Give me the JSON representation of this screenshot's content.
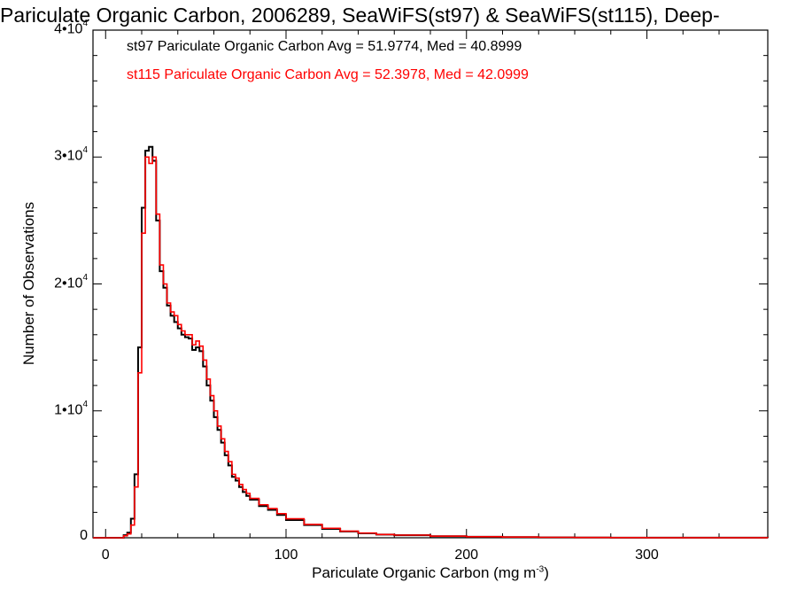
{
  "chart_data": {
    "type": "histogram-step",
    "title": "Pariculate Organic Carbon, 2006289, SeaWiFS(st97) & SeaWiFS(st115), Deep-",
    "xlabel": "Pariculate Organic Carbon (mg m",
    "xlabel_unit_exp": "-3",
    "xlabel_close": ")",
    "ylabel": "Number of Observations",
    "xlim": [
      -7,
      367
    ],
    "ylim": [
      0,
      40000
    ],
    "x_ticks": [
      0,
      100,
      200,
      300
    ],
    "y_ticks": [
      {
        "value": 0,
        "mant": "0",
        "exp": ""
      },
      {
        "value": 10000,
        "mant": "1•10",
        "exp": "4"
      },
      {
        "value": 20000,
        "mant": "2•10",
        "exp": "4"
      },
      {
        "value": 30000,
        "mant": "3•10",
        "exp": "4"
      },
      {
        "value": 40000,
        "mant": "4•10",
        "exp": "4"
      }
    ],
    "bin_width": 2,
    "grid": false,
    "series": [
      {
        "name": "st97",
        "legend": "st97 Pariculate Organic Carbon Avg = 51.9774, Med = 40.8999",
        "color": "#000000",
        "x": [
          -7,
          10,
          12,
          14,
          16,
          18,
          20,
          22,
          24,
          26,
          28,
          30,
          32,
          34,
          36,
          38,
          40,
          42,
          44,
          46,
          48,
          50,
          52,
          54,
          56,
          58,
          60,
          62,
          64,
          66,
          68,
          70,
          72,
          74,
          76,
          78,
          80,
          85,
          90,
          95,
          100,
          110,
          120,
          130,
          140,
          150,
          160,
          180,
          200,
          220,
          240,
          260,
          280,
          300,
          367
        ],
        "y": [
          0,
          200,
          400,
          1500,
          5000,
          15000,
          26000,
          30500,
          30800,
          29700,
          25000,
          21000,
          19700,
          18300,
          17500,
          17000,
          16500,
          16000,
          15800,
          15700,
          14800,
          15000,
          14700,
          13500,
          12000,
          10800,
          9500,
          8500,
          7500,
          6500,
          5700,
          4800,
          4500,
          4000,
          3600,
          3300,
          3000,
          2500,
          2200,
          1800,
          1400,
          1000,
          700,
          500,
          350,
          250,
          200,
          120,
          80,
          50,
          30,
          20,
          10,
          5,
          0
        ]
      },
      {
        "name": "st115",
        "legend": "st115 Pariculate Organic Carbon Avg = 52.3978, Med = 42.0999",
        "color": "#ff0000",
        "x": [
          -7,
          10,
          12,
          14,
          16,
          18,
          20,
          22,
          24,
          26,
          28,
          30,
          32,
          34,
          36,
          38,
          40,
          42,
          44,
          46,
          48,
          50,
          52,
          54,
          56,
          58,
          60,
          62,
          64,
          66,
          68,
          70,
          72,
          74,
          76,
          78,
          80,
          85,
          90,
          95,
          100,
          110,
          120,
          130,
          140,
          150,
          160,
          180,
          200,
          220,
          240,
          260,
          280,
          300,
          367
        ],
        "y": [
          0,
          150,
          300,
          1000,
          4000,
          13000,
          24000,
          30000,
          29500,
          30000,
          25500,
          21500,
          20000,
          18500,
          17800,
          17500,
          16800,
          16300,
          16000,
          16000,
          15200,
          15500,
          15100,
          14000,
          12500,
          11200,
          10000,
          8800,
          7800,
          6800,
          6000,
          5000,
          4700,
          4200,
          3800,
          3500,
          3100,
          2600,
          2300,
          1900,
          1500,
          1050,
          750,
          520,
          370,
          260,
          210,
          130,
          85,
          55,
          35,
          22,
          12,
          6,
          0
        ]
      }
    ]
  }
}
